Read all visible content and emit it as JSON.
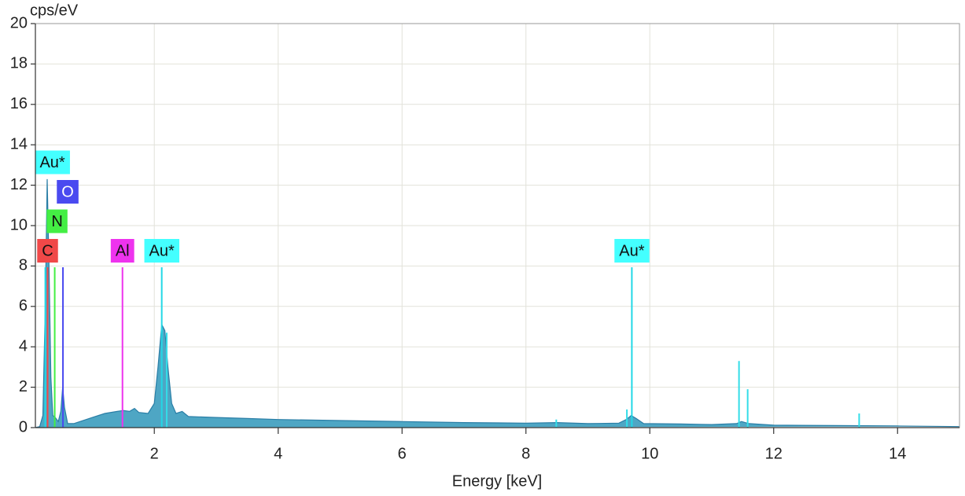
{
  "chart_data": {
    "type": "spectrum",
    "ylabel": "cps/eV",
    "xlabel": "Energy [keV]",
    "xlim": [
      0.08,
      15
    ],
    "ylim": [
      0,
      20
    ],
    "xticks": [
      2,
      4,
      6,
      8,
      10,
      12,
      14
    ],
    "yticks": [
      0,
      2,
      4,
      6,
      8,
      10,
      12,
      14,
      16,
      18,
      20
    ],
    "grid": true,
    "color": "#4ea6c4",
    "line_color": "#2a7ea6",
    "x": [
      0.08,
      0.15,
      0.2,
      0.24,
      0.27,
      0.3,
      0.33,
      0.36,
      0.4,
      0.45,
      0.49,
      0.52,
      0.55,
      0.6,
      0.7,
      0.8,
      1.0,
      1.2,
      1.4,
      1.5,
      1.6,
      1.68,
      1.75,
      1.9,
      2.0,
      2.06,
      2.12,
      2.17,
      2.22,
      2.28,
      2.35,
      2.45,
      2.55,
      3,
      3.5,
      4,
      5,
      6,
      7,
      8,
      8.5,
      9,
      9.5,
      9.62,
      9.7,
      9.78,
      9.9,
      10.5,
      11,
      11.4,
      11.48,
      11.6,
      12,
      13,
      14,
      15
    ],
    "values": [
      0,
      0.05,
      0.6,
      6.0,
      12.3,
      8,
      2.5,
      0.6,
      0.5,
      0.3,
      0.8,
      2.0,
      1.0,
      0.2,
      0.2,
      0.3,
      0.5,
      0.7,
      0.8,
      0.85,
      0.8,
      0.95,
      0.75,
      0.7,
      1.2,
      3.0,
      5.1,
      4.8,
      3.0,
      1.2,
      0.7,
      0.8,
      0.55,
      0.5,
      0.45,
      0.4,
      0.35,
      0.3,
      0.25,
      0.22,
      0.25,
      0.2,
      0.22,
      0.4,
      0.6,
      0.45,
      0.2,
      0.18,
      0.15,
      0.2,
      0.3,
      0.2,
      0.12,
      0.1,
      0.08,
      0.05
    ],
    "peak_lines": {
      "color": "#33dde8",
      "x": [
        2.2,
        8.49,
        9.63,
        11.44,
        11.58,
        13.38
      ],
      "values": [
        4.7,
        0.4,
        0.9,
        3.3,
        1.9,
        0.7
      ]
    },
    "markers": [
      {
        "label": "C",
        "x": 0.277,
        "color": "#f04848"
      },
      {
        "label": "N",
        "x": 0.392,
        "color": "#44ee44"
      },
      {
        "label": "O",
        "x": 0.525,
        "color": "#4a4af0"
      },
      {
        "label": "Au*",
        "x": 0.24,
        "color": "#44ffff"
      },
      {
        "label": "Al",
        "x": 1.486,
        "color": "#ee33ee"
      },
      {
        "label": "Au*",
        "x": 2.12,
        "color": "#44ffff"
      },
      {
        "label": "Au*",
        "x": 9.71,
        "color": "#44ffff"
      }
    ]
  }
}
